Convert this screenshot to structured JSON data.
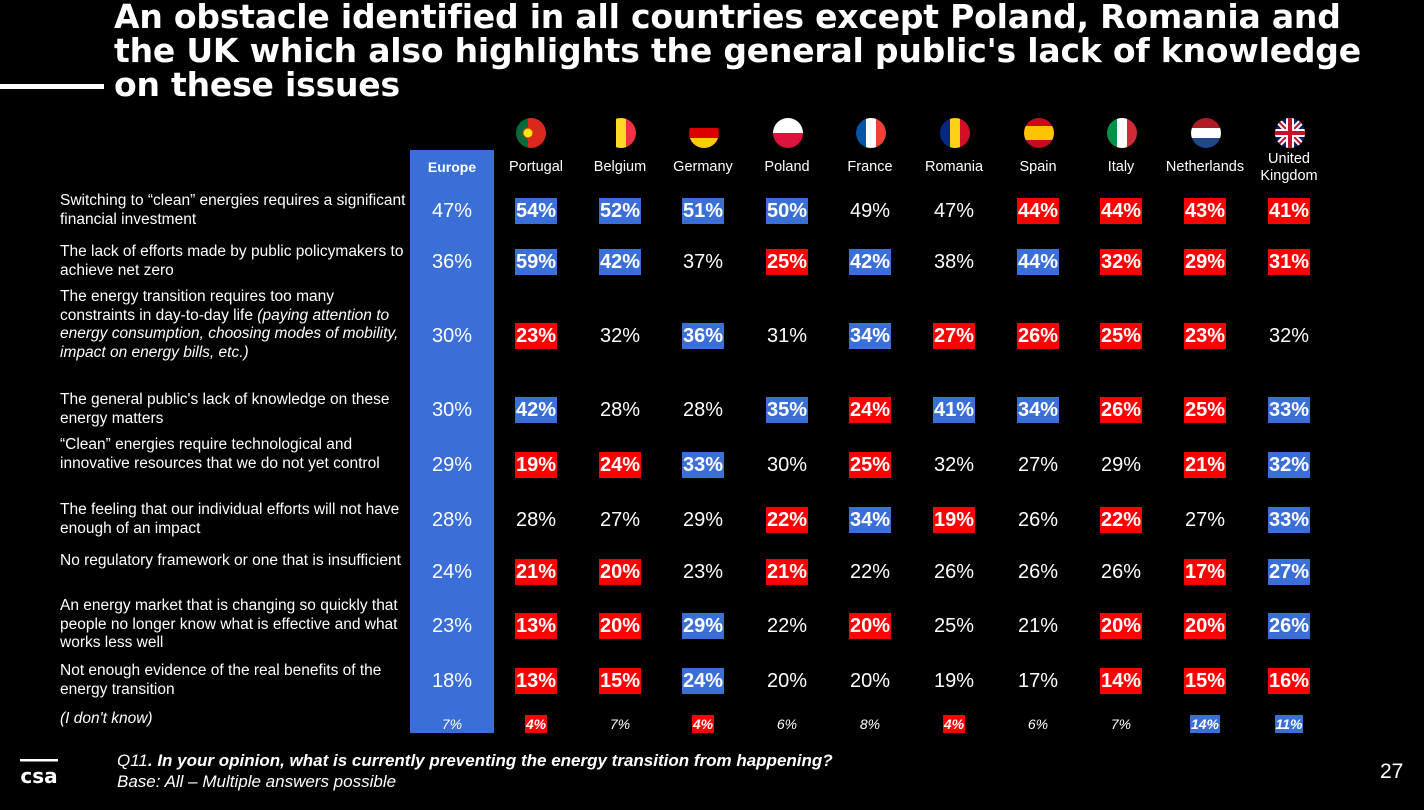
{
  "title_lines": [
    "An obstacle identified in all countries except Poland, Romania and",
    "the UK which also highlights the general public's lack of knowledge",
    "on these issues"
  ],
  "footnote": {
    "q_prefix": "Q11",
    "question": ". In your opinion, what is currently preventing the energy transition from happening?",
    "base": "Base: All – Multiple answers possible"
  },
  "page_number": "27",
  "logo_text": "csa",
  "colors": {
    "background": "#000000",
    "europe_column": "#3a6fd8",
    "higher": "#3a6fd8",
    "lower": "#ff0000"
  },
  "chart_data": {
    "type": "table",
    "columns": [
      "Europe",
      "Portugal",
      "Belgium",
      "Germany",
      "Poland",
      "France",
      "Romania",
      "Spain",
      "Italy",
      "Netherlands",
      "United Kingdom"
    ],
    "flags": [
      "flag-portugal-icon",
      "flag-belgium-icon",
      "flag-germany-icon",
      "flag-poland-icon",
      "flag-france-icon",
      "flag-romania-icon",
      "flag-spain-icon",
      "flag-italy-icon",
      "flag-netherlands-icon",
      "flag-uk-icon"
    ],
    "rows": [
      {
        "label": "Switching to “clean” energies requires a significant financial investment",
        "values": [
          "47%",
          "54%",
          "52%",
          "51%",
          "50%",
          "49%",
          "47%",
          "44%",
          "44%",
          "43%",
          "41%"
        ],
        "highlight": [
          "",
          "hi",
          "hi",
          "hi",
          "hi",
          "",
          "",
          "lo",
          "lo",
          "lo",
          "lo"
        ]
      },
      {
        "label": "The lack of efforts made by public policymakers to achieve net zero",
        "values": [
          "36%",
          "59%",
          "42%",
          "37%",
          "25%",
          "42%",
          "38%",
          "44%",
          "32%",
          "29%",
          "31%"
        ],
        "highlight": [
          "",
          "hi",
          "hi",
          "",
          "lo",
          "hi",
          "",
          "hi",
          "lo",
          "lo",
          "lo"
        ]
      },
      {
        "label": "The energy transition requires too many constraints in day-to-day life ",
        "label_italic": "(paying attention to energy consumption, choosing modes of mobility, impact on energy bills, etc.)",
        "values": [
          "30%",
          "23%",
          "32%",
          "36%",
          "31%",
          "34%",
          "27%",
          "26%",
          "25%",
          "23%",
          "32%"
        ],
        "highlight": [
          "",
          "lo",
          "",
          "hi",
          "",
          "hi",
          "lo",
          "lo",
          "lo",
          "lo",
          ""
        ]
      },
      {
        "label": "The general public's lack of knowledge on these energy matters",
        "values": [
          "30%",
          "42%",
          "28%",
          "28%",
          "35%",
          "24%",
          "41%",
          "34%",
          "26%",
          "25%",
          "33%"
        ],
        "highlight": [
          "",
          "hi",
          "",
          "",
          "hi",
          "lo",
          "hi",
          "hi",
          "lo",
          "lo",
          "hi"
        ]
      },
      {
        "label": "“Clean” energies require technological and innovative resources that we do not yet control",
        "values": [
          "29%",
          "19%",
          "24%",
          "33%",
          "30%",
          "25%",
          "32%",
          "27%",
          "29%",
          "21%",
          "32%"
        ],
        "highlight": [
          "",
          "lo",
          "lo",
          "hi",
          "",
          "lo",
          "",
          "",
          "",
          "lo",
          "hi"
        ]
      },
      {
        "label": "The feeling that our individual efforts will not have enough of an impact",
        "values": [
          "28%",
          "28%",
          "27%",
          "29%",
          "22%",
          "34%",
          "19%",
          "26%",
          "22%",
          "27%",
          "33%"
        ],
        "highlight": [
          "",
          "",
          "",
          "",
          "lo",
          "hi",
          "lo",
          "",
          "lo",
          "",
          "hi"
        ]
      },
      {
        "label": "No regulatory framework or one that is insufficient",
        "values": [
          "24%",
          "21%",
          "20%",
          "23%",
          "21%",
          "22%",
          "26%",
          "26%",
          "26%",
          "17%",
          "27%"
        ],
        "highlight": [
          "",
          "lo",
          "lo",
          "",
          "lo",
          "",
          "",
          "",
          "",
          "lo",
          "hi"
        ]
      },
      {
        "label": "An energy market that is changing so quickly that people no longer know what is effective and what works less well",
        "values": [
          "23%",
          "13%",
          "20%",
          "29%",
          "22%",
          "20%",
          "25%",
          "21%",
          "20%",
          "20%",
          "26%"
        ],
        "highlight": [
          "",
          "lo",
          "lo",
          "hi",
          "",
          "lo",
          "",
          "",
          "lo",
          "lo",
          "hi"
        ]
      },
      {
        "label": "Not enough evidence of the real benefits of the energy transition",
        "values": [
          "18%",
          "13%",
          "15%",
          "24%",
          "20%",
          "20%",
          "19%",
          "17%",
          "14%",
          "15%",
          "16%"
        ],
        "highlight": [
          "",
          "lo",
          "lo",
          "hi",
          "",
          "",
          "",
          "",
          "lo",
          "lo",
          "lo"
        ]
      },
      {
        "label": "(I don't know)",
        "values": [
          "7%",
          "4%",
          "7%",
          "4%",
          "6%",
          "8%",
          "4%",
          "6%",
          "7%",
          "14%",
          "11%"
        ],
        "highlight": [
          "",
          "lo",
          "",
          "lo",
          "",
          "",
          "lo",
          "",
          "",
          "hi",
          "hi"
        ]
      }
    ]
  }
}
